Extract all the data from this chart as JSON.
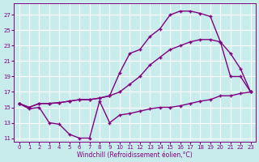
{
  "xlabel": "Windchill (Refroidissement éolien,°C)",
  "bg_color": "#c8ecec",
  "line_color": "#800080",
  "grid_color": "#ffffff",
  "xlim": [
    -0.5,
    23.5
  ],
  "ylim": [
    10.5,
    28.5
  ],
  "xticks": [
    0,
    1,
    2,
    3,
    4,
    5,
    6,
    7,
    8,
    9,
    10,
    11,
    12,
    13,
    14,
    15,
    16,
    17,
    18,
    19,
    20,
    21,
    22,
    23
  ],
  "yticks": [
    11,
    13,
    15,
    17,
    19,
    21,
    23,
    25,
    27
  ],
  "line1_x": [
    0,
    1,
    2,
    3,
    4,
    5,
    6,
    7,
    8,
    9,
    10,
    11,
    12,
    13,
    14,
    15,
    16,
    17,
    18,
    19,
    20,
    21,
    22,
    23
  ],
  "line1_y": [
    15.5,
    15.0,
    15.5,
    15.5,
    15.6,
    15.8,
    16.0,
    16.0,
    16.2,
    16.5,
    19.5,
    22.0,
    22.5,
    24.2,
    25.2,
    27.0,
    27.5,
    27.5,
    27.2,
    26.8,
    23.5,
    19.0,
    19.0,
    17.0
  ],
  "line2_x": [
    0,
    1,
    2,
    3,
    4,
    5,
    6,
    7,
    8,
    9,
    10,
    11,
    12,
    13,
    14,
    15,
    16,
    17,
    18,
    19,
    20,
    21,
    22,
    23
  ],
  "line2_y": [
    15.5,
    15.0,
    15.5,
    15.5,
    15.6,
    15.8,
    16.0,
    16.0,
    16.2,
    16.5,
    17.0,
    18.0,
    19.0,
    20.5,
    21.5,
    22.5,
    23.0,
    23.5,
    23.8,
    23.8,
    23.5,
    22.0,
    20.0,
    17.0
  ],
  "line3_x": [
    0,
    1,
    2,
    3,
    4,
    5,
    6,
    7,
    8,
    9,
    10,
    11,
    12,
    13,
    14,
    15,
    16,
    17,
    18,
    19,
    20,
    21,
    22,
    23
  ],
  "line3_y": [
    15.5,
    14.8,
    15.0,
    13.0,
    12.8,
    11.5,
    11.0,
    11.0,
    15.8,
    13.0,
    14.0,
    14.2,
    14.5,
    14.8,
    15.0,
    15.0,
    15.2,
    15.5,
    15.8,
    16.0,
    16.5,
    16.5,
    16.8,
    17.0
  ]
}
